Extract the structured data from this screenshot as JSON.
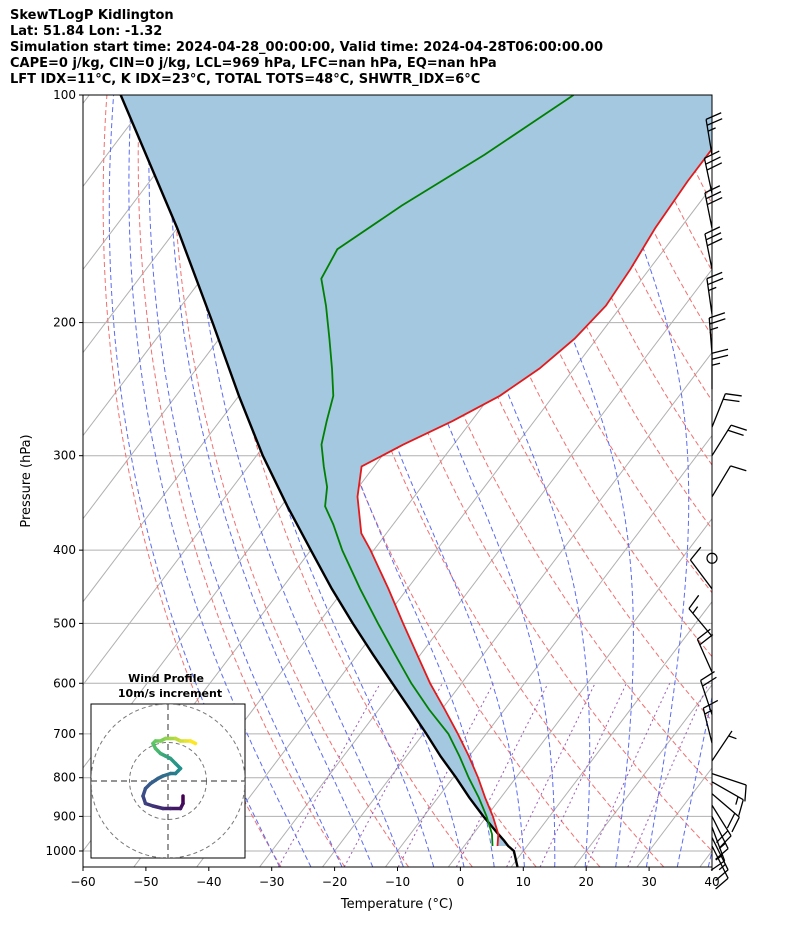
{
  "header": {
    "line1": "SkewTLogP Kidlington",
    "line2": "Lat: 51.84   Lon: -1.32",
    "line3": "Simulation start time: 2024-04-28_00:00:00, Valid time: 2024-04-28T06:00:00.00",
    "line4": "CAPE=0 j/kg, CIN=0 j/kg, LCL=969 hPa, LFC=nan hPa, EQ=nan hPa",
    "line5": "LFT IDX=11°C, K IDX=23°C, TOTAL TOTS=48°C, SHWTR_IDX=6°C"
  },
  "colors": {
    "temperature": "#e31a1c",
    "dewpoint": "#008000",
    "parcel": "#000000",
    "cape_fill": "#a4c8e0",
    "dry_adiabat": "#f07070",
    "moist_adiabat": "#5c6cf0",
    "mixing_ratio": "#9b59b6",
    "isotherm": "#b0b0b0"
  },
  "chart_data": {
    "type": "line",
    "xlabel": "Temperature (°C)",
    "ylabel": "Pressure (hPa)",
    "xlim": [
      -60,
      40
    ],
    "ylim": [
      1050,
      100
    ],
    "yscale": "log",
    "skew_deg_per_decade": 91,
    "x_ticks": [
      "−60",
      "−50",
      "−40",
      "−30",
      "−20",
      "−10",
      "0",
      "10",
      "20",
      "30",
      "40"
    ],
    "y_ticks": [
      {
        "p": 1000,
        "label": "1000"
      },
      {
        "p": 900,
        "label": "900"
      },
      {
        "p": 800,
        "label": "800"
      },
      {
        "p": 700,
        "label": "700"
      },
      {
        "p": 600,
        "label": "600"
      },
      {
        "p": 500,
        "label": "500"
      },
      {
        "p": 400,
        "label": "400"
      },
      {
        "p": 300,
        "label": "300"
      },
      {
        "p": 200,
        "label": "200"
      },
      {
        "p": 100,
        "label": "100"
      }
    ],
    "temperature": {
      "p": [
        985,
        950,
        900,
        850,
        800,
        750,
        700,
        650,
        600,
        550,
        500,
        450,
        400,
        380,
        340,
        310,
        290,
        270,
        250,
        230,
        210,
        190,
        170,
        150,
        130,
        115,
        100
      ],
      "t": [
        5.3,
        4.0,
        1.0,
        -2.5,
        -6.0,
        -10.0,
        -14.5,
        -19.5,
        -25.0,
        -30.5,
        -36.5,
        -43.0,
        -50.5,
        -54.0,
        -59.0,
        -62.0,
        -58.0,
        -53.0,
        -48.5,
        -45.5,
        -43.5,
        -42.5,
        -43.0,
        -44.0,
        -44.5,
        -44.5,
        -45.5
      ]
    },
    "dewpoint": {
      "p": [
        985,
        950,
        900,
        850,
        800,
        750,
        700,
        650,
        600,
        550,
        500,
        450,
        400,
        370,
        350,
        330,
        310,
        290,
        270,
        250,
        230,
        210,
        190,
        175,
        160,
        140,
        120,
        100
      ],
      "td": [
        4.5,
        3.0,
        0.0,
        -3.5,
        -7.5,
        -11.5,
        -16.0,
        -22.0,
        -28.0,
        -34.0,
        -40.5,
        -47.5,
        -55.0,
        -59.5,
        -63.0,
        -65.0,
        -68.0,
        -71.0,
        -73.0,
        -75.0,
        -78.5,
        -82.5,
        -87.0,
        -91.0,
        -92.0,
        -87.0,
        -80.0,
        -73.0
      ]
    },
    "parcel": {
      "p": [
        1050,
        1000,
        985,
        969,
        950,
        900,
        850,
        800,
        750,
        700,
        650,
        600,
        550,
        500,
        450,
        400,
        350,
        300,
        250,
        200,
        150,
        100
      ],
      "t": [
        11.0,
        8.5,
        7.0,
        5.7,
        4.0,
        -0.5,
        -5.0,
        -9.5,
        -14.5,
        -19.5,
        -25.0,
        -31.0,
        -37.5,
        -44.5,
        -52.0,
        -60.0,
        -69.0,
        -79.0,
        -90.0,
        -103.0,
        -120.0,
        -145.0
      ]
    },
    "wind_barbs": [
      {
        "p": 985,
        "u": -2,
        "v": 4
      },
      {
        "p": 960,
        "u": -3,
        "v": 6
      },
      {
        "p": 930,
        "u": -3,
        "v": 8
      },
      {
        "p": 900,
        "u": -4,
        "v": 8
      },
      {
        "p": 870,
        "u": -5,
        "v": 8
      },
      {
        "p": 840,
        "u": -7,
        "v": 6
      },
      {
        "p": 810,
        "u": -7,
        "v": 4
      },
      {
        "p": 790,
        "u": -6,
        "v": 2
      },
      {
        "p": 760,
        "u": -2,
        "v": -3
      },
      {
        "p": 720,
        "u": 2,
        "v": -8
      },
      {
        "p": 660,
        "u": 3,
        "v": -9
      },
      {
        "p": 580,
        "u": 4,
        "v": -9
      },
      {
        "p": 520,
        "u": 5,
        "v": -6
      },
      {
        "p": 450,
        "u": 3,
        "v": -4
      },
      {
        "p": 410,
        "u": 0,
        "v": 0
      },
      {
        "p": 340,
        "u": -3,
        "v": -5
      },
      {
        "p": 300,
        "u": -5,
        "v": -8
      },
      {
        "p": 275,
        "u": -4,
        "v": -10
      },
      {
        "p": 245,
        "u": 0,
        "v": -12
      },
      {
        "p": 220,
        "u": 1,
        "v": -13
      },
      {
        "p": 195,
        "u": 2,
        "v": -14
      },
      {
        "p": 170,
        "u": 3,
        "v": -15
      },
      {
        "p": 150,
        "u": 3,
        "v": -15
      },
      {
        "p": 135,
        "u": 3,
        "v": -14
      },
      {
        "p": 120,
        "u": 2,
        "v": -12
      }
    ],
    "hodograph": {
      "title_line1": "Wind Profile",
      "title_line2": "10m/s increment",
      "rings_ms": [
        10,
        20,
        30
      ],
      "range_ms": 20,
      "u": [
        6,
        6,
        5,
        1,
        -2,
        -6,
        -9,
        -10,
        -9,
        -7,
        -4,
        -2,
        1,
        3,
        4,
        5,
        3,
        1,
        -1,
        -3,
        -4,
        -5,
        -6,
        -5,
        -3,
        -1,
        1,
        3,
        5,
        7,
        9,
        11
      ],
      "v": [
        -6,
        -9,
        -11,
        -11,
        -11,
        -10,
        -9,
        -6,
        -3,
        -1,
        1,
        2,
        3,
        3,
        4,
        5,
        7,
        9,
        10,
        11,
        12,
        13,
        15,
        16,
        16,
        17,
        17,
        17,
        16,
        16,
        16,
        15
      ]
    }
  }
}
